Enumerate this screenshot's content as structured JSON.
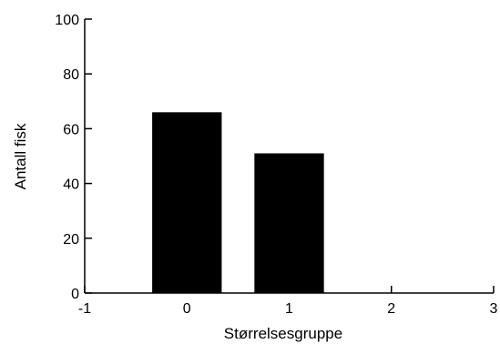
{
  "chart_data": {
    "type": "bar",
    "title": "",
    "xlabel": "Størrelsesgruppe",
    "ylabel": "Antall fisk",
    "xlim": [
      -1,
      3
    ],
    "ylim": [
      0,
      100
    ],
    "x_ticks": [
      "-1",
      "0",
      "1",
      "2",
      "3"
    ],
    "y_ticks": [
      "0",
      "20",
      "40",
      "60",
      "80",
      "100"
    ],
    "categories": [
      0,
      1
    ],
    "values": [
      66,
      51
    ],
    "bar_width": 0.68,
    "bar_color": "#000000",
    "grid": false,
    "legend": "none"
  }
}
